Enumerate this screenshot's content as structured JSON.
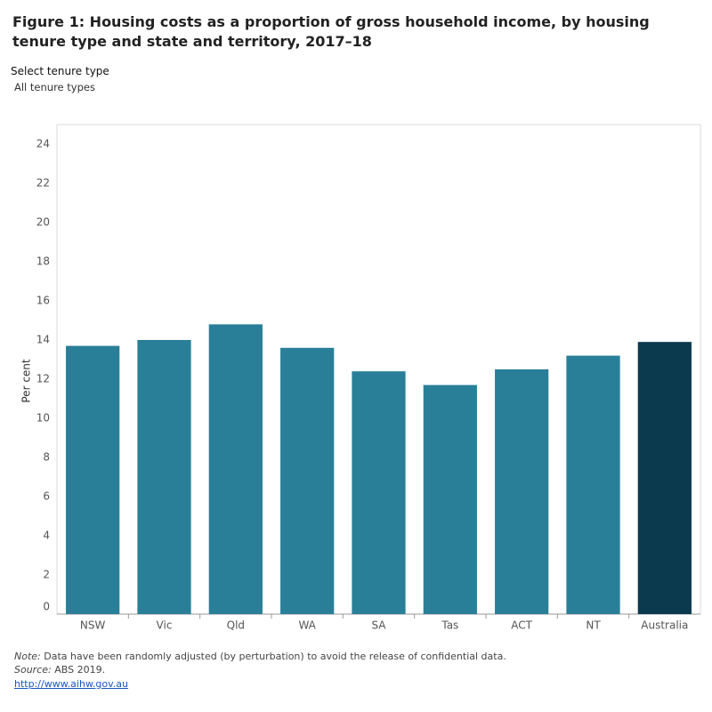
{
  "chart_data": {
    "type": "bar",
    "title": "Figure 1: Housing costs as a proportion of gross household income, by housing tenure type and state and territory, 2017–18",
    "filter_label": "Select tenure type",
    "filter_value": "All tenure types",
    "y_label": "Per cent",
    "categories": [
      "NSW",
      "Vic",
      "Qld",
      "WA",
      "SA",
      "Tas",
      "ACT",
      "NT",
      "Australia"
    ],
    "values": [
      13.7,
      14.0,
      14.8,
      13.6,
      12.4,
      11.7,
      12.5,
      13.2,
      13.9
    ],
    "colors": [
      "#2a7f98",
      "#2a7f98",
      "#2a7f98",
      "#2a7f98",
      "#2a7f98",
      "#2a7f98",
      "#2a7f98",
      "#2a7f98",
      "#0b3a4f"
    ],
    "ylim": [
      0,
      25
    ],
    "yticks": [
      0,
      2,
      4,
      6,
      8,
      10,
      12,
      14,
      16,
      18,
      20,
      22,
      24
    ],
    "grid": false,
    "note_label": "Note:",
    "note_text": " Data have been randomly adjusted (by perturbation) to avoid the release of confidential data.",
    "source_label": "Source:",
    "source_text": " ABS 2019.",
    "link": "http://www.aihw.gov.au"
  }
}
